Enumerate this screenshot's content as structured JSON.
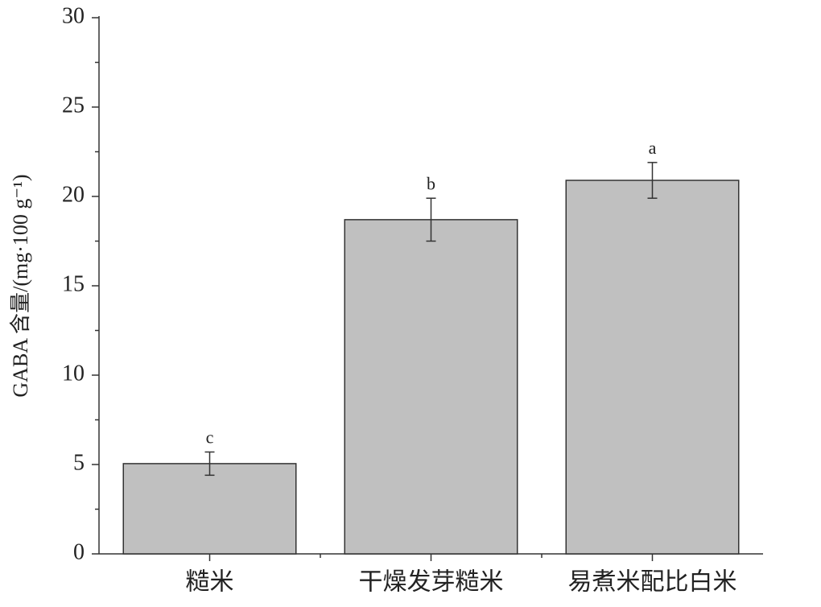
{
  "chart_data": {
    "type": "bar",
    "ylabel": "GABA 含量/(mg·100 g⁻¹)",
    "categories": [
      "糙米",
      "干燥发芽糙米",
      "易煮米配比白米"
    ],
    "values": [
      5.05,
      18.7,
      20.9
    ],
    "errors": [
      0.65,
      1.2,
      1.0
    ],
    "significance": [
      "c",
      "b",
      "a"
    ],
    "color": "#c0c0c0",
    "ylim": [
      0,
      30
    ],
    "yticks": [
      0,
      5,
      10,
      15,
      20,
      25,
      30
    ],
    "yminorticks": [
      2.5,
      7.5,
      12.5,
      17.5,
      22.5,
      27.5
    ],
    "grid": false
  }
}
